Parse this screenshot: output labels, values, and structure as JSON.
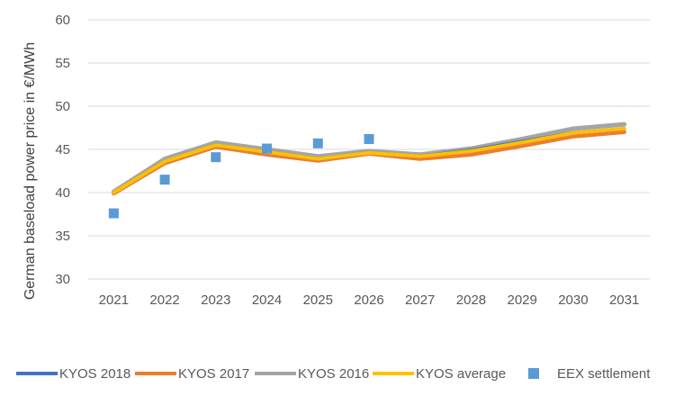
{
  "chart_data": {
    "type": "line",
    "title": "",
    "xlabel": "",
    "ylabel": "German baseload power price in €/MWh",
    "categories": [
      "2021",
      "2022",
      "2023",
      "2024",
      "2025",
      "2026",
      "2027",
      "2028",
      "2029",
      "2030",
      "2031"
    ],
    "ylim": [
      30,
      60
    ],
    "yticks": [
      30,
      35,
      40,
      45,
      50,
      55,
      60
    ],
    "grid": true,
    "legend_position": "bottom",
    "series": [
      {
        "name": "KYOS 2018",
        "type": "line",
        "color": "#4472C4",
        "values": [
          40.0,
          43.6,
          45.5,
          44.7,
          43.9,
          44.6,
          44.2,
          44.9,
          45.9,
          46.9,
          47.4
        ]
      },
      {
        "name": "KYOS 2017",
        "type": "line",
        "color": "#ED7D31",
        "values": [
          39.9,
          43.4,
          45.3,
          44.4,
          43.7,
          44.5,
          43.9,
          44.4,
          45.4,
          46.5,
          47.0
        ]
      },
      {
        "name": "KYOS 2016",
        "type": "line",
        "color": "#A5A5A5",
        "values": [
          40.1,
          43.9,
          45.8,
          45.0,
          44.2,
          44.8,
          44.4,
          45.1,
          46.2,
          47.4,
          47.9
        ]
      },
      {
        "name": "KYOS average",
        "type": "line",
        "color": "#FFC000",
        "values": [
          40.0,
          43.6,
          45.5,
          44.7,
          43.9,
          44.6,
          44.2,
          44.8,
          45.8,
          46.9,
          47.4
        ]
      },
      {
        "name": "EEX settlement",
        "type": "scatter",
        "color": "#5B9BD5",
        "values": [
          37.6,
          41.5,
          44.1,
          45.1,
          45.7,
          46.2,
          null,
          null,
          null,
          null,
          null
        ]
      }
    ]
  }
}
